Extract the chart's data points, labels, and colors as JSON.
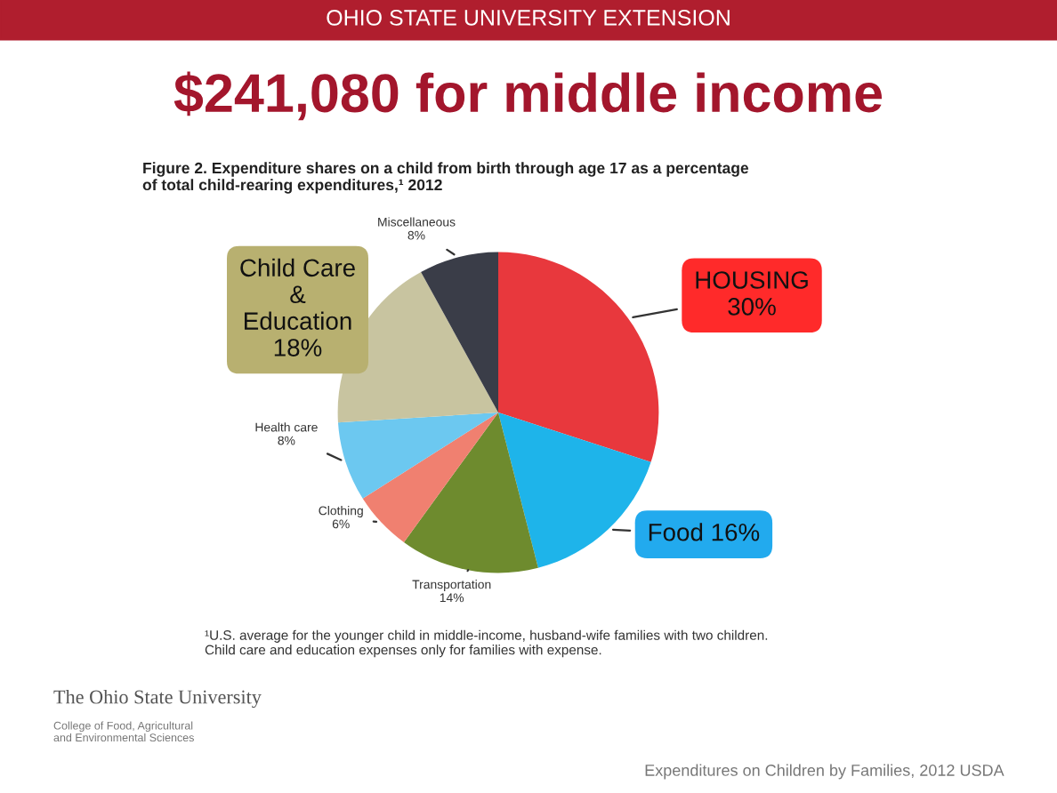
{
  "chart_data": {
    "type": "pie",
    "title": "$241,080 for middle income",
    "subtitle": "Figure 2. Expenditure shares on a child from birth through age 17 as a percentage\nof total child-rearing expenditures,¹ 2012",
    "categories": [
      "HOUSING",
      "Food",
      "Transportation",
      "Clothing",
      "Health care",
      "Child Care\n&\nEducation",
      "Miscellaneous"
    ],
    "values": [
      30,
      16,
      14,
      6,
      8,
      18,
      8
    ],
    "value_labels": [
      "30%",
      "16%",
      "14%",
      "6%",
      "8%",
      "18%",
      "8%"
    ],
    "colors": [
      "#e8383d",
      "#1eb4ea",
      "#6e8b2e",
      "#f08070",
      "#6cc8f0",
      "#c8c4a0",
      "#3a3d48"
    ],
    "annotations": [
      "OHIO STATE UNIVERSITY EXTENSION",
      "¹U.S. average for the younger child in middle-income, husband-wife families with two children.\nChild care and education expenses only for families with expense.",
      "The Ohio State University",
      "College of Food, Agricultural\nand Environmental Sciences",
      "Expenditures on Children by Families, 2012 USDA"
    ]
  }
}
